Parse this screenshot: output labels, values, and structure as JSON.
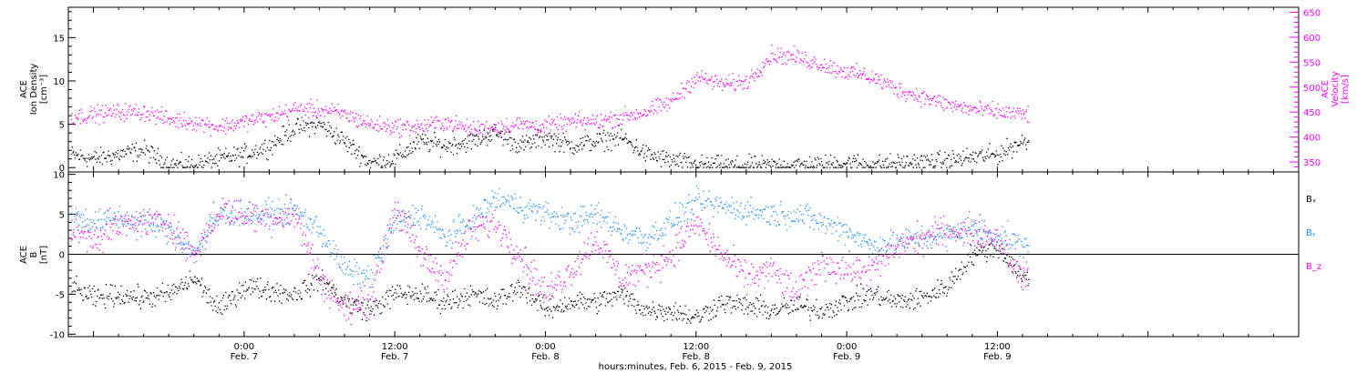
{
  "x_axis_title": "hours:minutes, Feb.  6, 2015 - Feb.  9, 2015",
  "x_ticks": [
    {
      "time": "0:00",
      "date": "Feb. 7",
      "hours": 24
    },
    {
      "time": "12:00",
      "date": "Feb. 7",
      "hours": 36
    },
    {
      "time": "0:00",
      "date": "Feb. 8",
      "hours": 48
    },
    {
      "time": "12:00",
      "date": "Feb. 8",
      "hours": 60
    },
    {
      "time": "0:00",
      "date": "Feb. 9",
      "hours": 72
    },
    {
      "time": "12:00",
      "date": "Feb. 9",
      "hours": 84
    }
  ],
  "colors": {
    "black": "#000000",
    "magenta": "#ff00ff",
    "blue": "#1e90ff",
    "axis": "#000000"
  },
  "chart_data": [
    {
      "type": "scatter",
      "title": "",
      "xlabel": "hours:minutes, Feb.  6, 2015 - Feb.  9, 2015",
      "x_range_hours": [
        10,
        108
      ],
      "data_end_hours": 86.5,
      "left_axis": {
        "label_lines": [
          "ACE",
          "Ion Density",
          "[cm⁻³]"
        ],
        "ticks": [
          0,
          5,
          10,
          15
        ],
        "range": [
          -0.5,
          18.5
        ]
      },
      "right_axis": {
        "label_lines": [
          "ACE",
          "Velocity",
          "[km/s]"
        ],
        "ticks": [
          350,
          400,
          450,
          500,
          550,
          600,
          650
        ],
        "range": [
          330,
          660
        ]
      },
      "series": [
        {
          "name": "Ion Density",
          "axis": "left",
          "color": "#000000",
          "x": [
            10,
            12,
            14,
            16,
            18,
            20,
            22,
            24,
            26,
            28,
            30,
            32,
            34,
            36,
            38,
            40,
            42,
            44,
            46,
            48,
            50,
            52,
            54,
            56,
            58,
            60,
            62,
            64,
            66,
            68,
            70,
            72,
            74,
            76,
            78,
            80,
            82,
            84,
            86
          ],
          "y": [
            1.5,
            1,
            1.5,
            2,
            0.3,
            0.3,
            1,
            1.5,
            2.5,
            4.5,
            5,
            3,
            0.5,
            1,
            3,
            2.5,
            3,
            4,
            2.5,
            3.5,
            2.5,
            3,
            3.5,
            1.5,
            0.8,
            0.3,
            0.2,
            0.2,
            0.2,
            0.3,
            0.3,
            0.6,
            0.3,
            0.5,
            0.6,
            0.8,
            1.2,
            1.5,
            3
          ]
        },
        {
          "name": "Velocity",
          "axis": "right",
          "color": "#ff00ff",
          "x": [
            10,
            12,
            14,
            16,
            18,
            20,
            22,
            24,
            26,
            28,
            30,
            32,
            34,
            36,
            38,
            40,
            42,
            44,
            46,
            48,
            50,
            52,
            54,
            56,
            58,
            60,
            62,
            64,
            66,
            68,
            70,
            72,
            74,
            76,
            78,
            80,
            82,
            84,
            86
          ],
          "y": [
            440,
            445,
            450,
            450,
            435,
            430,
            420,
            430,
            440,
            455,
            455,
            445,
            425,
            420,
            420,
            430,
            415,
            420,
            425,
            420,
            430,
            430,
            440,
            450,
            470,
            520,
            505,
            510,
            565,
            560,
            545,
            530,
            520,
            495,
            480,
            465,
            455,
            450,
            445
          ]
        }
      ]
    },
    {
      "type": "scatter",
      "title": "",
      "x_range_hours": [
        10,
        108
      ],
      "data_end_hours": 86.5,
      "left_axis": {
        "label_lines": [
          "ACE",
          "B",
          "[nT]"
        ],
        "ticks": [
          -10,
          -5,
          0,
          5,
          10
        ],
        "range": [
          -10.3,
          10.3
        ]
      },
      "zero_line": true,
      "legend": {
        "placement": "right",
        "entries": [
          "Bₓ",
          "Bᵧ",
          "B_z"
        ]
      },
      "series": [
        {
          "name": "Bₓ",
          "color": "#000000",
          "x": [
            10,
            12,
            14,
            16,
            18,
            20,
            22,
            24,
            26,
            28,
            30,
            32,
            34,
            36,
            38,
            40,
            42,
            44,
            46,
            48,
            50,
            52,
            54,
            56,
            58,
            60,
            62,
            64,
            66,
            68,
            70,
            72,
            74,
            76,
            78,
            80,
            82,
            84,
            86
          ],
          "y": [
            -4,
            -5.5,
            -5,
            -5.5,
            -5,
            -3,
            -7,
            -4,
            -4.5,
            -5,
            -3,
            -6,
            -7,
            -5,
            -5,
            -6,
            -5,
            -6,
            -4,
            -7,
            -6,
            -6,
            -5,
            -7,
            -7,
            -8,
            -6,
            -6.5,
            -7,
            -6.5,
            -7,
            -6,
            -5,
            -6,
            -5.5,
            -4,
            0,
            1,
            -3
          ]
        },
        {
          "name": "Bᵧ",
          "color": "#1e90ff",
          "x": [
            10,
            12,
            14,
            16,
            18,
            20,
            22,
            24,
            26,
            28,
            30,
            32,
            34,
            36,
            38,
            40,
            42,
            44,
            46,
            48,
            50,
            52,
            54,
            56,
            58,
            60,
            62,
            64,
            66,
            68,
            70,
            72,
            74,
            76,
            78,
            80,
            82,
            84,
            86
          ],
          "y": [
            5,
            4,
            4.5,
            4,
            3,
            0,
            5,
            5,
            5,
            5.5,
            3,
            -2,
            -3,
            4,
            5,
            2,
            4,
            7,
            6,
            5,
            4,
            5,
            3,
            2,
            4,
            6.5,
            6,
            5.5,
            5,
            5,
            4,
            3,
            1,
            1.5,
            2,
            2.5,
            3,
            2.5,
            1
          ]
        },
        {
          "name": "B_z",
          "color": "#ff00ff",
          "x": [
            10,
            12,
            14,
            16,
            18,
            20,
            22,
            24,
            26,
            28,
            30,
            32,
            34,
            36,
            38,
            40,
            42,
            44,
            46,
            48,
            50,
            52,
            54,
            56,
            58,
            60,
            62,
            64,
            66,
            68,
            70,
            72,
            74,
            76,
            78,
            80,
            82,
            84,
            86
          ],
          "y": [
            3,
            2,
            3.5,
            4,
            4,
            0,
            5.5,
            5,
            4.5,
            5,
            -3,
            -7,
            -6,
            6,
            0,
            -3,
            3,
            4,
            0,
            -5,
            -2,
            2,
            -3,
            -2,
            0,
            4,
            0,
            -3,
            -2,
            -5,
            -1,
            -2,
            -2,
            1,
            2,
            3,
            3,
            2,
            -3
          ]
        }
      ]
    }
  ]
}
